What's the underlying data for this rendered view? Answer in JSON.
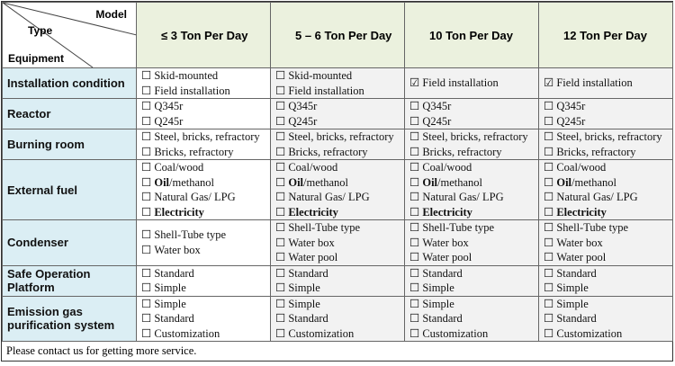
{
  "header": {
    "corner": {
      "model": "Model",
      "type": "Type",
      "equipment": "Equipment"
    },
    "columns": [
      "≤ 3 Ton Per Day",
      "5 – 6 Ton Per Day",
      "10 Ton Per Day",
      "12 Ton Per Day"
    ]
  },
  "rows": [
    {
      "label": "Installation condition",
      "cells": [
        [
          {
            "checked": false,
            "text": "Skid-mounted"
          },
          {
            "checked": false,
            "text": "Field installation"
          }
        ],
        [
          {
            "checked": false,
            "text": "Skid-mounted"
          },
          {
            "checked": false,
            "text": "Field installation"
          }
        ],
        [
          {
            "checked": true,
            "text": "Field installation"
          }
        ],
        [
          {
            "checked": true,
            "text": "Field installation"
          }
        ]
      ]
    },
    {
      "label": "Reactor",
      "cells": [
        [
          {
            "checked": false,
            "text": "Q345r"
          },
          {
            "checked": false,
            "text": "Q245r"
          }
        ],
        [
          {
            "checked": false,
            "text": "Q345r"
          },
          {
            "checked": false,
            "text": "Q245r"
          }
        ],
        [
          {
            "checked": false,
            "text": "Q345r"
          },
          {
            "checked": false,
            "text": "Q245r"
          }
        ],
        [
          {
            "checked": false,
            "text": "Q345r"
          },
          {
            "checked": false,
            "text": "Q245r"
          }
        ]
      ]
    },
    {
      "label": "Burning room",
      "cells": [
        [
          {
            "checked": false,
            "text": "Steel, bricks, refractory"
          },
          {
            "checked": false,
            "text": "Bricks, refractory"
          }
        ],
        [
          {
            "checked": false,
            "text": "Steel, bricks, refractory"
          },
          {
            "checked": false,
            "text": "Bricks, refractory"
          }
        ],
        [
          {
            "checked": false,
            "text": "Steel, bricks, refractory"
          },
          {
            "checked": false,
            "text": "Bricks, refractory"
          }
        ],
        [
          {
            "checked": false,
            "text": "Steel, bricks, refractory"
          },
          {
            "checked": false,
            "text": "Bricks, refractory"
          }
        ]
      ]
    },
    {
      "label": "External fuel",
      "cells": [
        [
          {
            "checked": false,
            "text": "Coal/wood"
          },
          {
            "checked": false,
            "lead": "Oil",
            "text": "/methanol"
          },
          {
            "checked": false,
            "text": "Natural Gas/ LPG"
          },
          {
            "checked": false,
            "lead": "Electricity"
          }
        ],
        [
          {
            "checked": false,
            "text": "Coal/wood"
          },
          {
            "checked": false,
            "lead": "Oil",
            "text": "/methanol"
          },
          {
            "checked": false,
            "text": "Natural Gas/ LPG"
          },
          {
            "checked": false,
            "lead": "Electricity"
          }
        ],
        [
          {
            "checked": false,
            "text": "Coal/wood"
          },
          {
            "checked": false,
            "lead": "Oil",
            "text": "/methanol"
          },
          {
            "checked": false,
            "text": "Natural Gas/ LPG"
          },
          {
            "checked": false,
            "lead": "Electricity"
          }
        ],
        [
          {
            "checked": false,
            "text": "Coal/wood"
          },
          {
            "checked": false,
            "lead": "Oil",
            "text": "/methanol"
          },
          {
            "checked": false,
            "text": "Natural Gas/ LPG"
          },
          {
            "checked": false,
            "lead": "Electricity"
          }
        ]
      ]
    },
    {
      "label": "Condenser",
      "cells": [
        [
          {
            "checked": false,
            "text": "Shell-Tube type"
          },
          {
            "checked": false,
            "text": "Water box"
          }
        ],
        [
          {
            "checked": false,
            "text": "Shell-Tube type"
          },
          {
            "checked": false,
            "text": "Water box"
          },
          {
            "checked": false,
            "text": "Water pool"
          }
        ],
        [
          {
            "checked": false,
            "text": "Shell-Tube type"
          },
          {
            "checked": false,
            "text": "Water box"
          },
          {
            "checked": false,
            "text": "Water pool"
          }
        ],
        [
          {
            "checked": false,
            "text": "Shell-Tube type"
          },
          {
            "checked": false,
            "text": "Water box"
          },
          {
            "checked": false,
            "text": "Water pool"
          }
        ]
      ]
    },
    {
      "label": "Safe Operation Platform",
      "cells": [
        [
          {
            "checked": false,
            "text": "Standard"
          },
          {
            "checked": false,
            "text": "Simple"
          }
        ],
        [
          {
            "checked": false,
            "text": "Standard"
          },
          {
            "checked": false,
            "text": "Simple"
          }
        ],
        [
          {
            "checked": false,
            "text": "Standard"
          },
          {
            "checked": false,
            "text": "Simple"
          }
        ],
        [
          {
            "checked": false,
            "text": "Standard"
          },
          {
            "checked": false,
            "text": "Simple"
          }
        ]
      ]
    },
    {
      "label": "Emission gas purification system",
      "cells": [
        [
          {
            "checked": false,
            "text": "Simple"
          },
          {
            "checked": false,
            "text": "Standard"
          },
          {
            "checked": false,
            "text": "Customization"
          }
        ],
        [
          {
            "checked": false,
            "text": "Simple"
          },
          {
            "checked": false,
            "text": "Standard"
          },
          {
            "checked": false,
            "text": "Customization"
          }
        ],
        [
          {
            "checked": false,
            "text": "Simple"
          },
          {
            "checked": false,
            "text": "Standard"
          },
          {
            "checked": false,
            "text": "Customization"
          }
        ],
        [
          {
            "checked": false,
            "text": "Simple"
          },
          {
            "checked": false,
            "text": "Standard"
          },
          {
            "checked": false,
            "text": "Customization"
          }
        ]
      ]
    }
  ],
  "footer": "Please contact us for getting more service."
}
